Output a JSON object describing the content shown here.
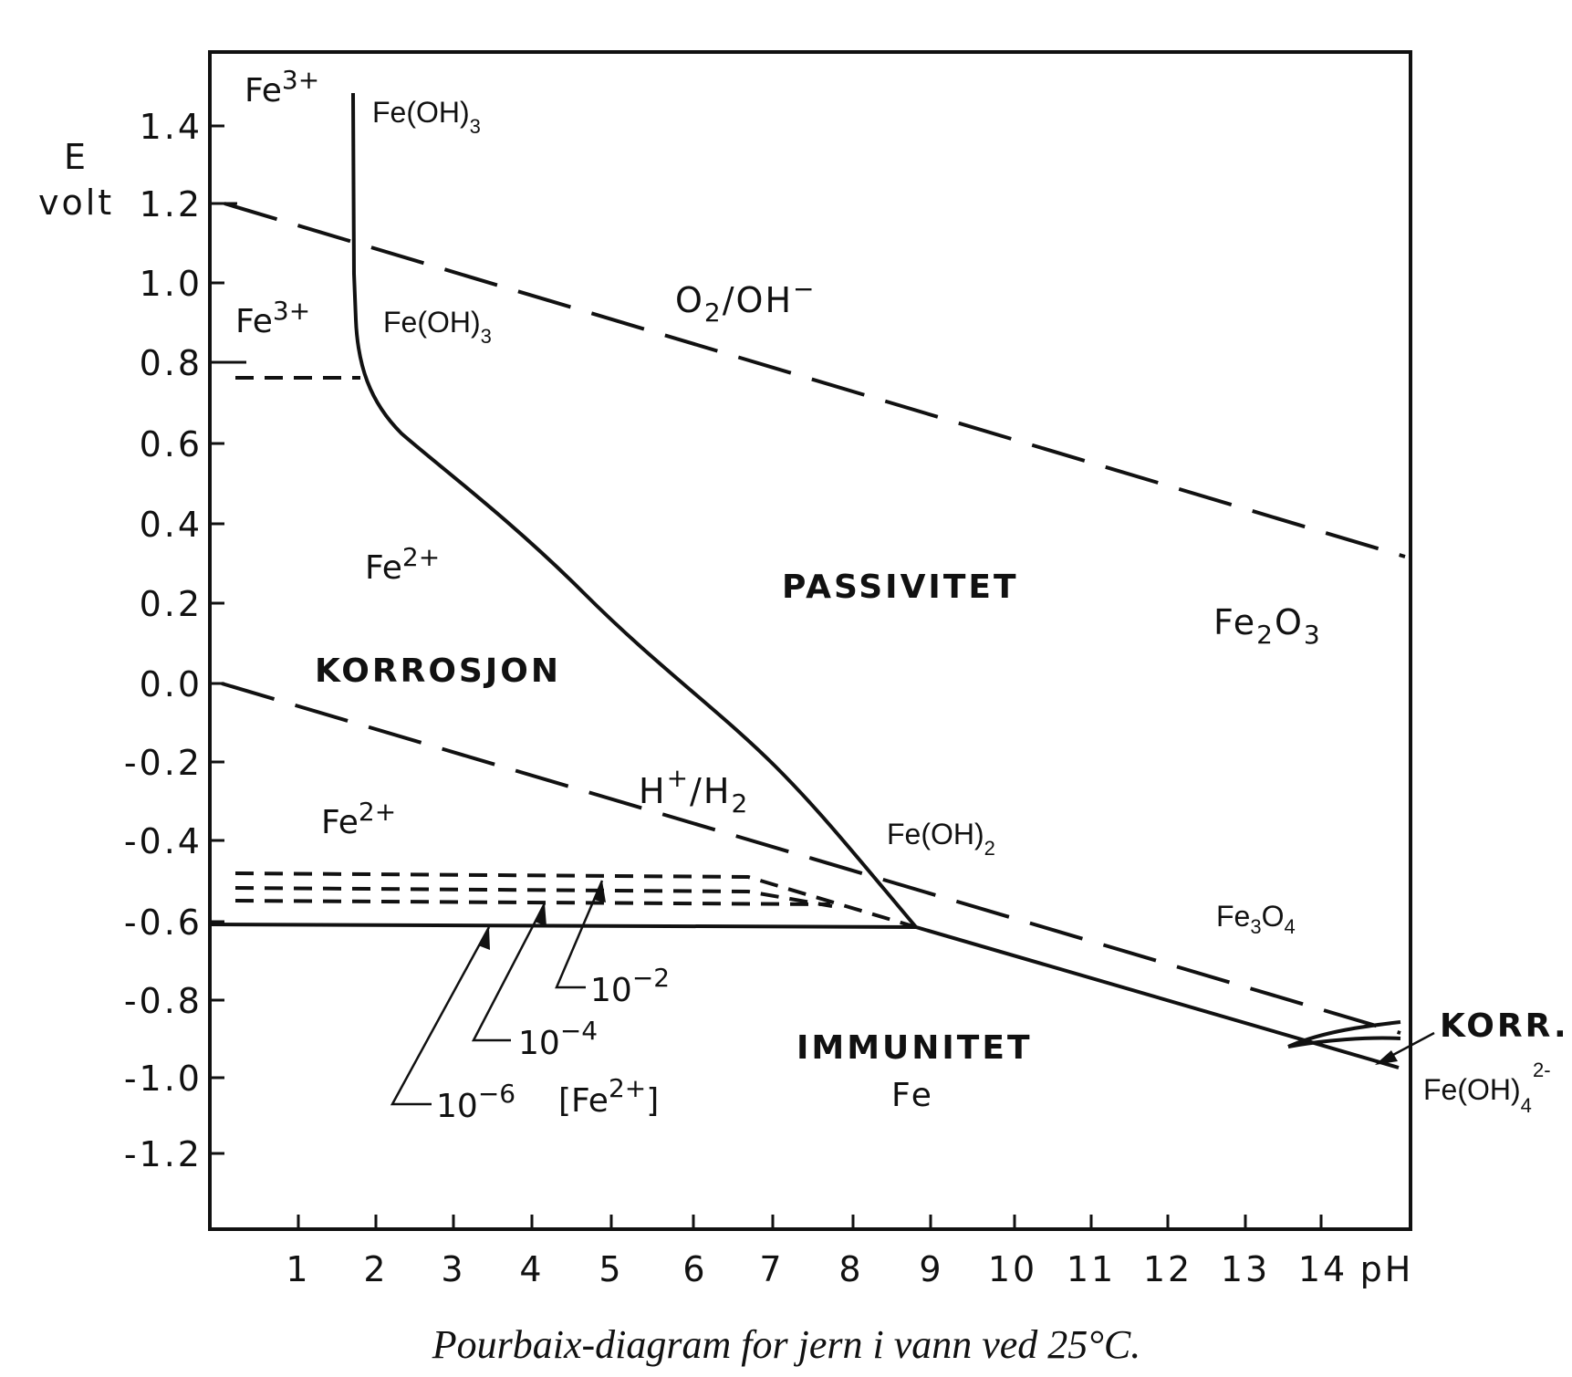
{
  "axes": {
    "y_label_line1": "E",
    "y_label_line2": "volt",
    "x_label": "pH",
    "y_ticks": [
      "1.4",
      "1.2",
      "1.0",
      "0.8",
      "0.6",
      "0.4",
      "0.2",
      "0.0",
      "-0.2",
      "-0.4",
      "-0.6",
      "-0.8",
      "-1.0",
      "-1.2"
    ],
    "x_ticks": [
      "1",
      "2",
      "3",
      "4",
      "5",
      "6",
      "7",
      "8",
      "9",
      "10",
      "11",
      "12",
      "13",
      "14"
    ]
  },
  "regions": {
    "korrosjon": "KORROSJON",
    "passivitet": "PASSIVITET",
    "immunitet": "IMMUNITET",
    "immunitet_species": "Fe",
    "korr": "KORR."
  },
  "species": {
    "fe3_top": {
      "base": "Fe",
      "sup": "3+"
    },
    "fe3_mid": {
      "base": "Fe",
      "sup": "3+"
    },
    "feoh3_top": {
      "base": "Fe(OH)",
      "sub": "3"
    },
    "feoh3_mid": {
      "base": "Fe(OH)",
      "sub": "3"
    },
    "fe2_upper": {
      "base": "Fe",
      "sup": "2+"
    },
    "fe2_lower": {
      "base": "Fe",
      "sup": "2+"
    },
    "feoh2": {
      "base": "Fe(OH)",
      "sub": "2"
    },
    "fe2o3": {
      "a": "Fe",
      "s1": "2",
      "b": "O",
      "s2": "3"
    },
    "fe3o4": {
      "a": "Fe",
      "s1": "3",
      "b": "O",
      "s2": "4"
    },
    "feoh4": {
      "base": "Fe(OH)",
      "sub": "4",
      "sup": "2-"
    }
  },
  "water_lines": {
    "o2": {
      "a": "O",
      "s": "2",
      "b": "/OH",
      "sup": "−"
    },
    "h2": {
      "a": "H",
      "sup": "+",
      "b": "/H",
      "s": "2"
    }
  },
  "concentrations": {
    "c2": {
      "base": "10",
      "sup": "−2"
    },
    "c4": {
      "base": "10",
      "sup": "−4"
    },
    "c6": {
      "base": "10",
      "sup": "−6"
    },
    "ion": {
      "open": "[Fe",
      "sup": "2+",
      "close": "]"
    }
  },
  "caption": "Pourbaix-diagram for jern i vann ved 25°C."
}
